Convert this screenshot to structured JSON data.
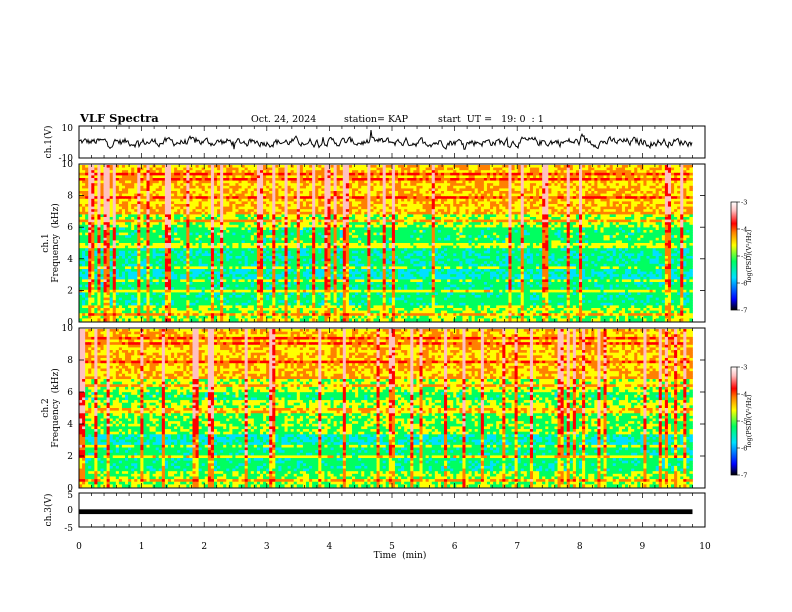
{
  "header": {
    "title": "VLF Spectra",
    "date": "Oct. 24, 2024",
    "station": "station= KAP",
    "start_ut": "start  UT =   19: 0  : 1"
  },
  "colors": {
    "spectrum_scale": [
      "#000000",
      "#0000ff",
      "#00e0ff",
      "#00ff60",
      "#ffff00",
      "#ff8000",
      "#ff0000",
      "#ffc0c0",
      "#ffffff"
    ]
  },
  "chart_data": [
    {
      "type": "line",
      "name": "ch1-waveform",
      "ylabel": "ch.1(V)",
      "yticks": [
        "10",
        "-10"
      ],
      "ylim": [
        -10,
        10
      ],
      "xlim": [
        0,
        10
      ],
      "description_of_values": "noisy waveform around 0 V with amplitude about 3 V, extending to 9.8 min"
    },
    {
      "type": "heatmap",
      "name": "ch1-spectrogram",
      "ylabel_line1": "ch.1",
      "ylabel_line2": "Frequency  (kHz)",
      "yticks": [
        "0",
        "2",
        "4",
        "6",
        "8",
        "10"
      ],
      "ylim": [
        0,
        10
      ],
      "xlim": [
        0,
        10
      ],
      "data_extent_min": 9.8,
      "colorbar": {
        "label": "log(PSD)(V²/Hz)",
        "ticks": [
          "-3",
          "-4",
          "-5",
          "-6",
          "-7"
        ],
        "range": [
          -7,
          -3
        ]
      }
    },
    {
      "type": "heatmap",
      "name": "ch2-spectrogram",
      "ylabel_line1": "ch.2",
      "ylabel_line2": "Frequency  (kHz)",
      "yticks": [
        "0",
        "2",
        "4",
        "6",
        "8",
        "10"
      ],
      "ylim": [
        0,
        10
      ],
      "xlim": [
        0,
        10
      ],
      "data_extent_min": 9.8,
      "colorbar": {
        "label": "log(PSD)(V²/Hz)",
        "ticks": [
          "-3",
          "-4",
          "-5",
          "-6",
          "-7"
        ],
        "range": [
          -7,
          -3
        ]
      }
    },
    {
      "type": "line",
      "name": "ch3-waveform",
      "ylabel": "ch.3(V)",
      "yticks": [
        "5",
        "0",
        "-5"
      ],
      "ylim": [
        -5,
        5
      ],
      "xlim": [
        0,
        10
      ],
      "xlabel": "Time  (min)",
      "xticks": [
        "0",
        "1",
        "2",
        "3",
        "4",
        "5",
        "6",
        "7",
        "8",
        "9",
        "10"
      ],
      "description_of_values": "dense thick black band around -0.5 V spanning 0 to 9.8 min"
    }
  ]
}
